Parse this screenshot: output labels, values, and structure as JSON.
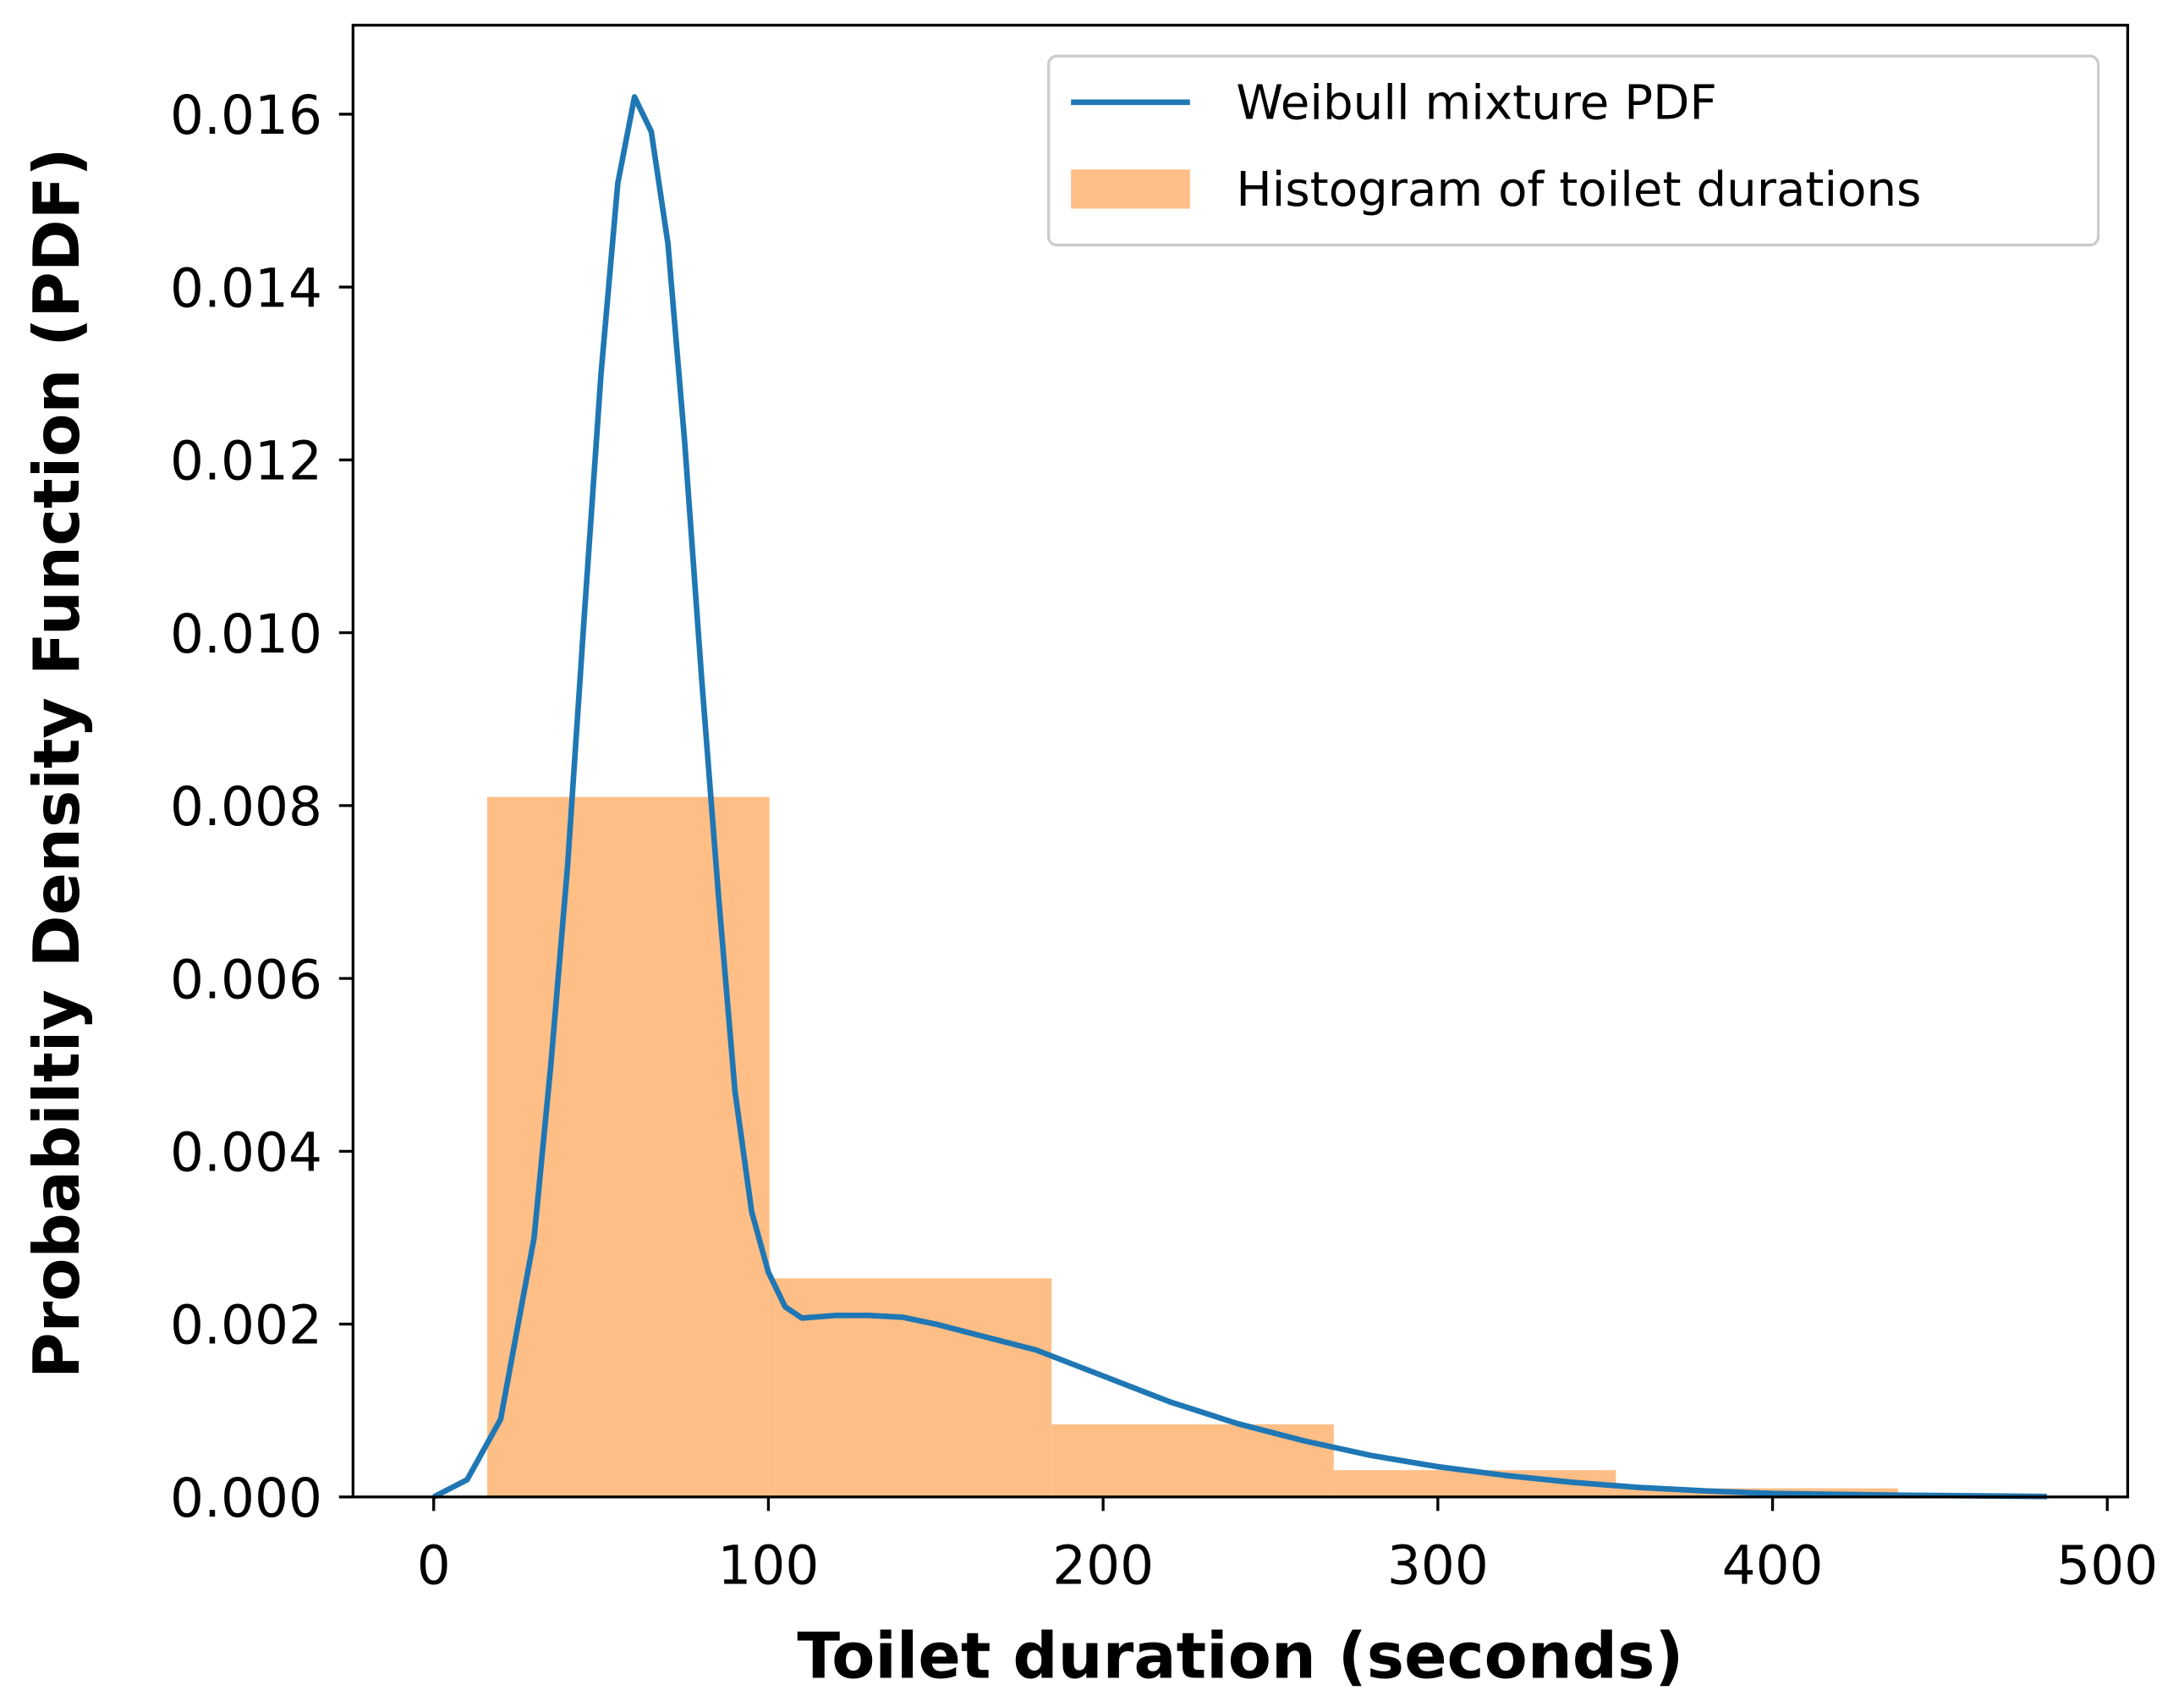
{
  "chart_data": {
    "type": "histogram",
    "xlabel": "Toilet duration (seconds)",
    "ylabel": "Probabiltiy Density Function (PDF)",
    "xlim": [
      -24.1,
      506.1
    ],
    "ylim": [
      0,
      0.01703
    ],
    "xticks": [
      0,
      100,
      200,
      300,
      400,
      500
    ],
    "yticks": [
      {
        "value": 0,
        "label": "0.000"
      },
      {
        "value": 0.002,
        "label": "0.002"
      },
      {
        "value": 0.004,
        "label": "0.004"
      },
      {
        "value": 0.006,
        "label": "0.006"
      },
      {
        "value": 0.008,
        "label": "0.008"
      },
      {
        "value": 0.01,
        "label": "0.010"
      },
      {
        "value": 0.012,
        "label": "0.012"
      },
      {
        "value": 0.014,
        "label": "0.014"
      },
      {
        "value": 0.016,
        "label": "0.016"
      }
    ],
    "legend": "upper right",
    "series": [
      {
        "name": "Weibull mixture PDF",
        "type": "line",
        "color": "#1f77b4",
        "x": [
          0,
          10,
          20,
          30,
          35,
          40,
          45,
          50,
          55,
          60,
          65,
          70,
          75,
          80,
          85,
          90,
          95,
          100,
          105,
          110,
          120,
          130,
          140,
          150,
          160,
          180,
          200,
          220,
          240,
          260,
          280,
          300,
          320,
          340,
          360,
          380,
          400,
          440,
          482
        ],
        "values": [
          0,
          0.0002,
          0.0009,
          0.003,
          0.005,
          0.0073,
          0.0102,
          0.013,
          0.0152,
          0.0162,
          0.0158,
          0.0145,
          0.0122,
          0.0095,
          0.007,
          0.0047,
          0.0033,
          0.0026,
          0.0022,
          0.00207,
          0.0021,
          0.0021,
          0.00208,
          0.002,
          0.0019,
          0.0017,
          0.0014,
          0.0011,
          0.00085,
          0.00065,
          0.00048,
          0.00035,
          0.00025,
          0.00017,
          0.00011,
          7e-05,
          4e-05,
          2e-05,
          5e-06
        ]
      },
      {
        "name": "Histogram of toilet durations",
        "type": "histogram",
        "color": "#ffbe86",
        "bins": [
          16,
          100.3,
          184.6,
          268.9,
          353.2,
          437.5
        ],
        "values": [
          0.0081,
          0.00253,
          0.00084,
          0.00031,
          0.0001
        ]
      }
    ]
  }
}
